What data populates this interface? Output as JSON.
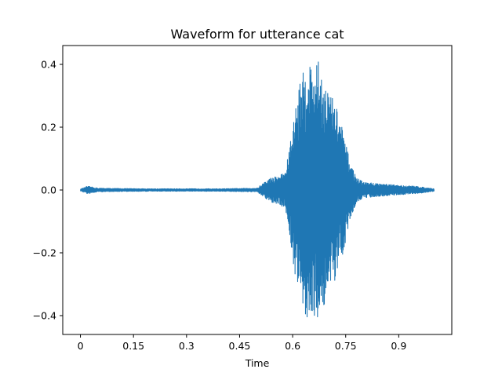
{
  "chart_data": {
    "type": "line",
    "title": "Waveform for utterance cat",
    "xlabel": "Time",
    "ylabel": "",
    "xlim": [
      -0.05,
      1.05
    ],
    "ylim": [
      -0.46,
      0.46
    ],
    "x_ticks": [
      0,
      0.15,
      0.3,
      0.45,
      0.6,
      0.75,
      0.9
    ],
    "x_tick_labels": [
      "0",
      "0.15",
      "0.3",
      "0.45",
      "0.6",
      "0.75",
      "0.9"
    ],
    "y_ticks": [
      -0.4,
      -0.2,
      0.0,
      0.2,
      0.4
    ],
    "y_tick_labels": [
      "−0.4",
      "−0.2",
      "0.0",
      "0.2",
      "0.4"
    ],
    "grid": false,
    "series": [
      {
        "color": "#1f77b4",
        "x": [
          0.0,
          0.02,
          0.05,
          0.1,
          0.2,
          0.3,
          0.4,
          0.45,
          0.5,
          0.52,
          0.54,
          0.56,
          0.58,
          0.6,
          0.62,
          0.64,
          0.65,
          0.66,
          0.67,
          0.68,
          0.7,
          0.72,
          0.74,
          0.76,
          0.78,
          0.8,
          0.85,
          0.9,
          0.95,
          1.0
        ],
        "y_upper": [
          0.003,
          0.012,
          0.006,
          0.005,
          0.004,
          0.004,
          0.004,
          0.005,
          0.006,
          0.025,
          0.04,
          0.045,
          0.06,
          0.2,
          0.35,
          0.4,
          0.41,
          0.38,
          0.42,
          0.38,
          0.32,
          0.28,
          0.2,
          0.1,
          0.04,
          0.025,
          0.02,
          0.015,
          0.012,
          0.004
        ],
        "y_lower": [
          -0.003,
          -0.012,
          -0.006,
          -0.005,
          -0.004,
          -0.004,
          -0.004,
          -0.005,
          -0.006,
          -0.025,
          -0.04,
          -0.045,
          -0.06,
          -0.22,
          -0.36,
          -0.41,
          -0.42,
          -0.4,
          -0.41,
          -0.4,
          -0.33,
          -0.3,
          -0.22,
          -0.1,
          -0.04,
          -0.025,
          -0.02,
          -0.015,
          -0.012,
          -0.004
        ]
      }
    ]
  }
}
